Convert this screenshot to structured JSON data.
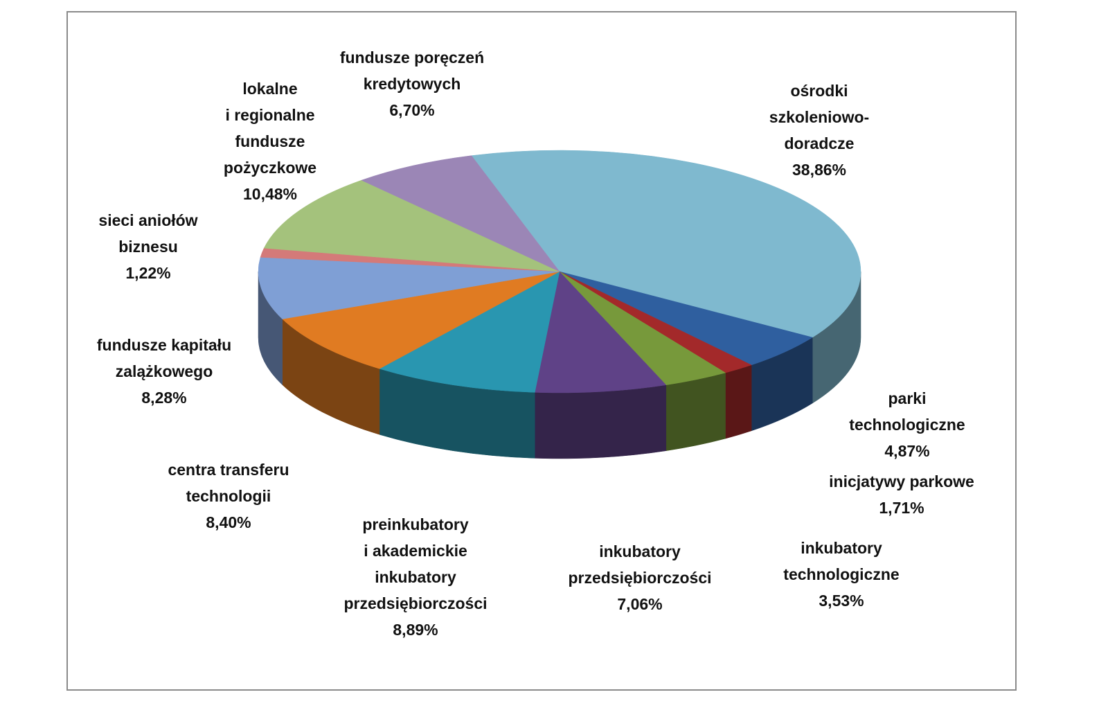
{
  "chart_data": {
    "type": "pie3d",
    "categories": [
      "ośrodki\nszkoleniowo-\ndoradcze",
      "parki\ntechnologiczne",
      "inicjatywy parkowe",
      "inkubatory\ntechnologiczne",
      "inkubatory\nprzedsiębiorczości",
      "preinkubatory\ni akademickie\ninkubatory\nprzedsiębiorczości",
      "centra transferu\ntechnologii",
      "fundusze kapitału\nzalążkowego",
      "sieci aniołów\nbiznesu",
      "lokalne\ni regionalne\nfundusze\npożyczkowe",
      "fundusze poręczeń\nkredytowych"
    ],
    "values": [
      38.86,
      4.87,
      1.71,
      3.53,
      7.06,
      8.89,
      8.4,
      8.28,
      1.22,
      10.48,
      6.7
    ],
    "value_labels": [
      "38,86%",
      "4,87%",
      "1,71%",
      "3,53%",
      "7,06%",
      "8,89%",
      "8,40%",
      "8,28%",
      "1,22%",
      "10,48%",
      "6,70%"
    ],
    "colors": [
      "#7fb9cf",
      "#2f5f9f",
      "#a3292a",
      "#77993b",
      "#5f4287",
      "#2996b0",
      "#e07b22",
      "#7f9fd5",
      "#d47a79",
      "#a4c27c",
      "#9b86b6"
    ]
  }
}
